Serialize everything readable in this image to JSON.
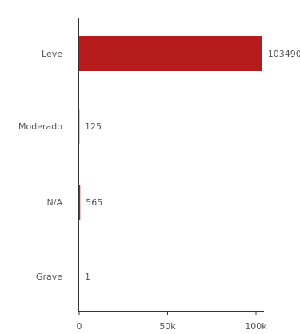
{
  "chart_data": {
    "type": "bar",
    "orientation": "horizontal",
    "categories": [
      "Leve",
      "Moderado",
      "N/A",
      "Grave"
    ],
    "values": [
      103490,
      125,
      565,
      1
    ],
    "value_labels": [
      "103490",
      "125",
      "565",
      "1"
    ],
    "xlim": [
      0,
      100000
    ],
    "xticks": [
      0,
      50000,
      100000
    ],
    "xtick_labels": [
      "0",
      "50k",
      "100k"
    ],
    "bar_color": "#b71c1c",
    "grid": false,
    "legend": "none",
    "title": "",
    "xlabel": "",
    "ylabel": ""
  }
}
